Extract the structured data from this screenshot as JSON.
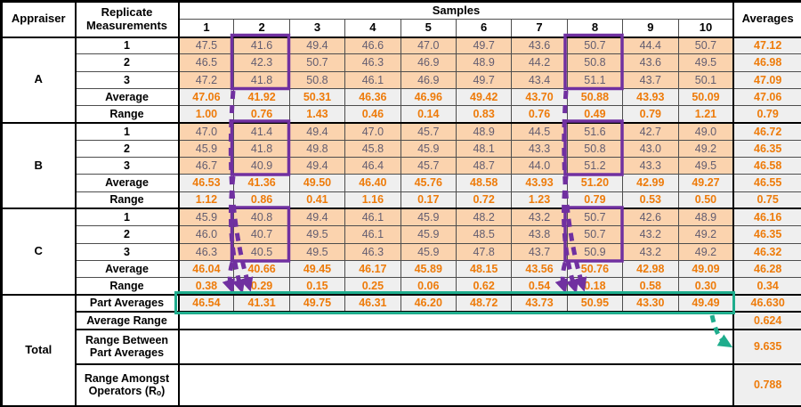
{
  "table": {
    "header": {
      "appraiser": "Appraiser",
      "replicate_line1": "Replicate",
      "replicate_line2": "Measurements",
      "samples": "Samples",
      "sample_numbers": [
        "1",
        "2",
        "3",
        "4",
        "5",
        "6",
        "7",
        "8",
        "9",
        "10"
      ],
      "averages": "Averages"
    },
    "appraisers": [
      {
        "name": "A",
        "rows": [
          {
            "label": "1",
            "type": "measure",
            "values": [
              "47.5",
              "41.6",
              "49.4",
              "46.6",
              "47.0",
              "49.7",
              "43.6",
              "50.7",
              "44.4",
              "50.7"
            ],
            "avg": "47.12"
          },
          {
            "label": "2",
            "type": "measure",
            "values": [
              "46.5",
              "42.3",
              "50.7",
              "46.3",
              "46.9",
              "48.9",
              "44.2",
              "50.8",
              "43.6",
              "49.5"
            ],
            "avg": "46.98"
          },
          {
            "label": "3",
            "type": "measure",
            "values": [
              "47.2",
              "41.8",
              "50.8",
              "46.1",
              "46.9",
              "49.7",
              "43.4",
              "51.1",
              "43.7",
              "50.1"
            ],
            "avg": "47.09"
          },
          {
            "label": "Average",
            "type": "stat",
            "values": [
              "47.06",
              "41.92",
              "50.31",
              "46.36",
              "46.96",
              "49.42",
              "43.70",
              "50.88",
              "43.93",
              "50.09"
            ],
            "avg": "47.06"
          },
          {
            "label": "Range",
            "type": "stat",
            "values": [
              "1.00",
              "0.76",
              "1.43",
              "0.46",
              "0.14",
              "0.83",
              "0.76",
              "0.49",
              "0.79",
              "1.21"
            ],
            "avg": "0.79"
          }
        ]
      },
      {
        "name": "B",
        "rows": [
          {
            "label": "1",
            "type": "measure",
            "values": [
              "47.0",
              "41.4",
              "49.4",
              "47.0",
              "45.7",
              "48.9",
              "44.5",
              "51.6",
              "42.7",
              "49.0"
            ],
            "avg": "46.72"
          },
          {
            "label": "2",
            "type": "measure",
            "values": [
              "45.9",
              "41.8",
              "49.8",
              "45.8",
              "45.9",
              "48.1",
              "43.3",
              "50.8",
              "43.0",
              "49.2"
            ],
            "avg": "46.35"
          },
          {
            "label": "3",
            "type": "measure",
            "values": [
              "46.7",
              "40.9",
              "49.4",
              "46.4",
              "45.7",
              "48.7",
              "44.0",
              "51.2",
              "43.3",
              "49.5"
            ],
            "avg": "46.58"
          },
          {
            "label": "Average",
            "type": "stat",
            "values": [
              "46.53",
              "41.36",
              "49.50",
              "46.40",
              "45.76",
              "48.58",
              "43.93",
              "51.20",
              "42.99",
              "49.27"
            ],
            "avg": "46.55"
          },
          {
            "label": "Range",
            "type": "stat",
            "values": [
              "1.12",
              "0.86",
              "0.41",
              "1.16",
              "0.17",
              "0.72",
              "1.23",
              "0.79",
              "0.53",
              "0.50"
            ],
            "avg": "0.75"
          }
        ]
      },
      {
        "name": "C",
        "rows": [
          {
            "label": "1",
            "type": "measure",
            "values": [
              "45.9",
              "40.8",
              "49.4",
              "46.1",
              "45.9",
              "48.2",
              "43.2",
              "50.7",
              "42.6",
              "48.9"
            ],
            "avg": "46.16"
          },
          {
            "label": "2",
            "type": "measure",
            "values": [
              "46.0",
              "40.7",
              "49.5",
              "46.1",
              "45.9",
              "48.5",
              "43.8",
              "50.7",
              "43.2",
              "49.2"
            ],
            "avg": "46.35"
          },
          {
            "label": "3",
            "type": "measure",
            "values": [
              "46.3",
              "40.5",
              "49.5",
              "46.3",
              "45.9",
              "47.8",
              "43.7",
              "50.9",
              "43.2",
              "49.2"
            ],
            "avg": "46.32"
          },
          {
            "label": "Average",
            "type": "stat",
            "values": [
              "46.04",
              "40.66",
              "49.45",
              "46.17",
              "45.89",
              "48.15",
              "43.56",
              "50.76",
              "42.98",
              "49.09"
            ],
            "avg": "46.28"
          },
          {
            "label": "Range",
            "type": "stat",
            "values": [
              "0.38",
              "0.29",
              "0.15",
              "0.25",
              "0.06",
              "0.62",
              "0.54",
              "0.18",
              "0.58",
              "0.30"
            ],
            "avg": "0.34"
          }
        ]
      }
    ],
    "total": {
      "name": "Total",
      "part_averages": {
        "label": "Part Averages",
        "values": [
          "46.54",
          "41.31",
          "49.75",
          "46.31",
          "46.20",
          "48.72",
          "43.73",
          "50.95",
          "43.30",
          "49.49"
        ],
        "avg": "46.630"
      },
      "rows": [
        {
          "label_lines": [
            "Average Range"
          ],
          "value": "0.624"
        },
        {
          "label_lines": [
            "Range Between",
            "Part Averages"
          ],
          "value": "9.635"
        },
        {
          "label_lines": [
            "Range Amongst",
            "Operators (Rₒ)"
          ],
          "value": "0.788"
        }
      ]
    },
    "annotations": {
      "highlighted_sample_columns": [
        "2",
        "8"
      ],
      "purple_box_color": "#7030A0",
      "teal_box_color": "#1FAD8D",
      "stat_text_color": "#EE7B0A",
      "measure_bg_color": "#FBD3AE",
      "measure_text_color": "#635d70",
      "stat_bg_color": "#efefef"
    }
  }
}
